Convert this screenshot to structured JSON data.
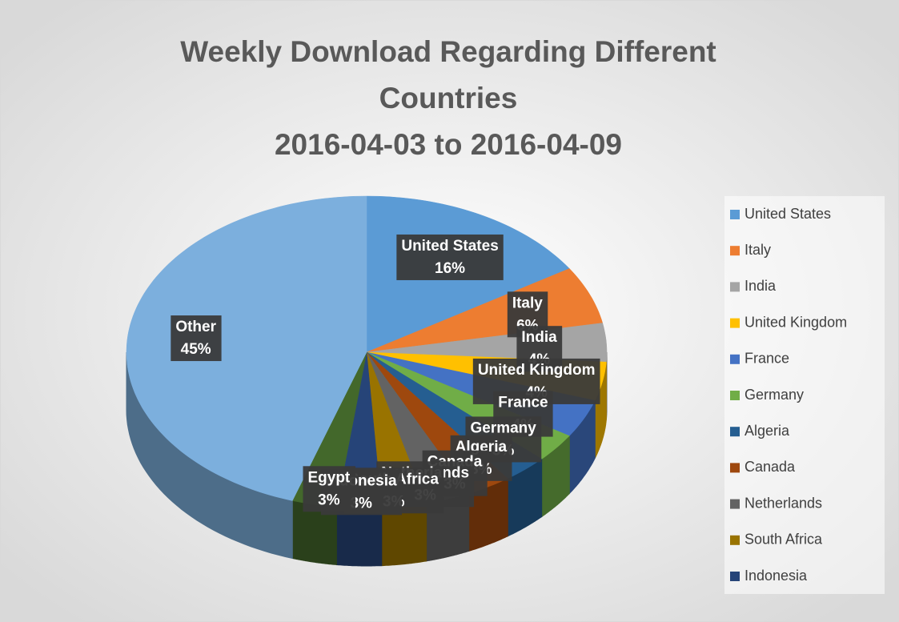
{
  "chart_data": {
    "type": "pie",
    "title": "Weekly Download Regarding Different Countries",
    "subtitle": "2016-04-03 to 2016-04-09",
    "categories": [
      "United States",
      "Italy",
      "India",
      "United Kingdom",
      "France",
      "Germany",
      "Algeria",
      "Canada",
      "Netherlands",
      "South Africa",
      "Indonesia",
      "Egypt",
      "Other"
    ],
    "values": [
      16,
      6,
      4,
      4,
      4,
      3,
      3,
      3,
      3,
      3,
      3,
      3,
      45
    ],
    "value_labels": [
      "16%",
      "6%",
      "4%",
      "4%",
      "4%",
      "3%",
      "3%",
      "3%",
      "3%",
      "3%",
      "3%",
      "3%",
      "45%"
    ],
    "colors": [
      "#5b9bd5",
      "#ed7d31",
      "#a5a5a5",
      "#ffc000",
      "#4472c4",
      "#70ad47",
      "#255e91",
      "#9e480e",
      "#636363",
      "#997300",
      "#264478",
      "#43682b",
      "#7cafdd"
    ],
    "legend": "right"
  }
}
